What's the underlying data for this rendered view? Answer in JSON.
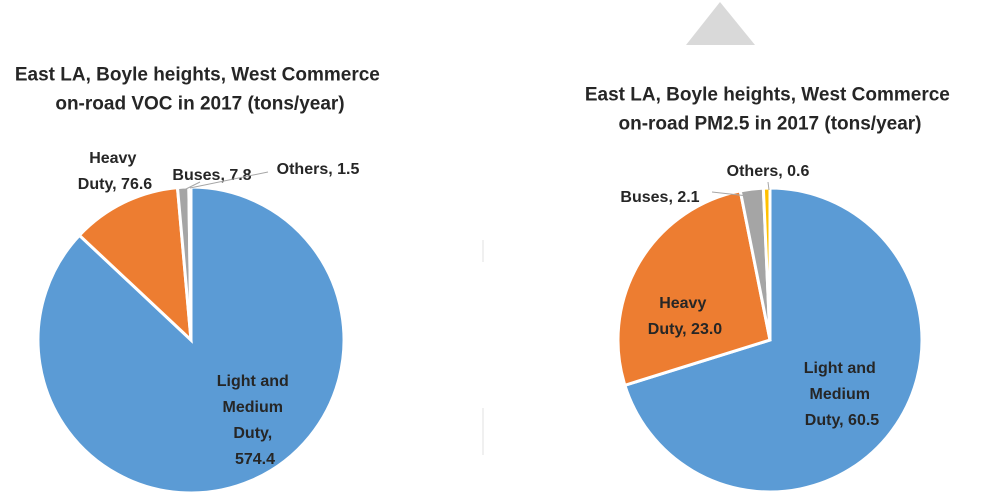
{
  "chart_data": [
    {
      "type": "pie",
      "title": "East LA, Boyle heights, West Commerce on-road VOC in 2017 (tons/year)",
      "categories": [
        "Light and Medium Duty",
        "Heavy Duty",
        "Buses",
        "Others"
      ],
      "values": [
        574.4,
        76.6,
        7.8,
        1.5
      ],
      "value_labels": [
        "Light and Medium Duty, 574.4",
        "Heavy Duty, 76.6",
        "Buses, 7.8",
        "Others, 1.5"
      ],
      "colors": [
        "#5b9bd5",
        "#ed7d31",
        "#a5a5a5",
        "#ffc000"
      ]
    },
    {
      "type": "pie",
      "title": "East LA, Boyle heights, West Commerce on-road PM2.5 in 2017 (tons/year)",
      "categories": [
        "Light and Medium Duty",
        "Heavy Duty",
        "Buses",
        "Others"
      ],
      "values": [
        60.5,
        23.0,
        2.1,
        0.6
      ],
      "value_labels": [
        "Light and Medium Duty, 60.5",
        "Heavy Duty, 23.0",
        "Buses, 2.1",
        "Others, 0.6"
      ],
      "colors": [
        "#5b9bd5",
        "#ed7d31",
        "#a5a5a5",
        "#ffc000"
      ]
    }
  ]
}
